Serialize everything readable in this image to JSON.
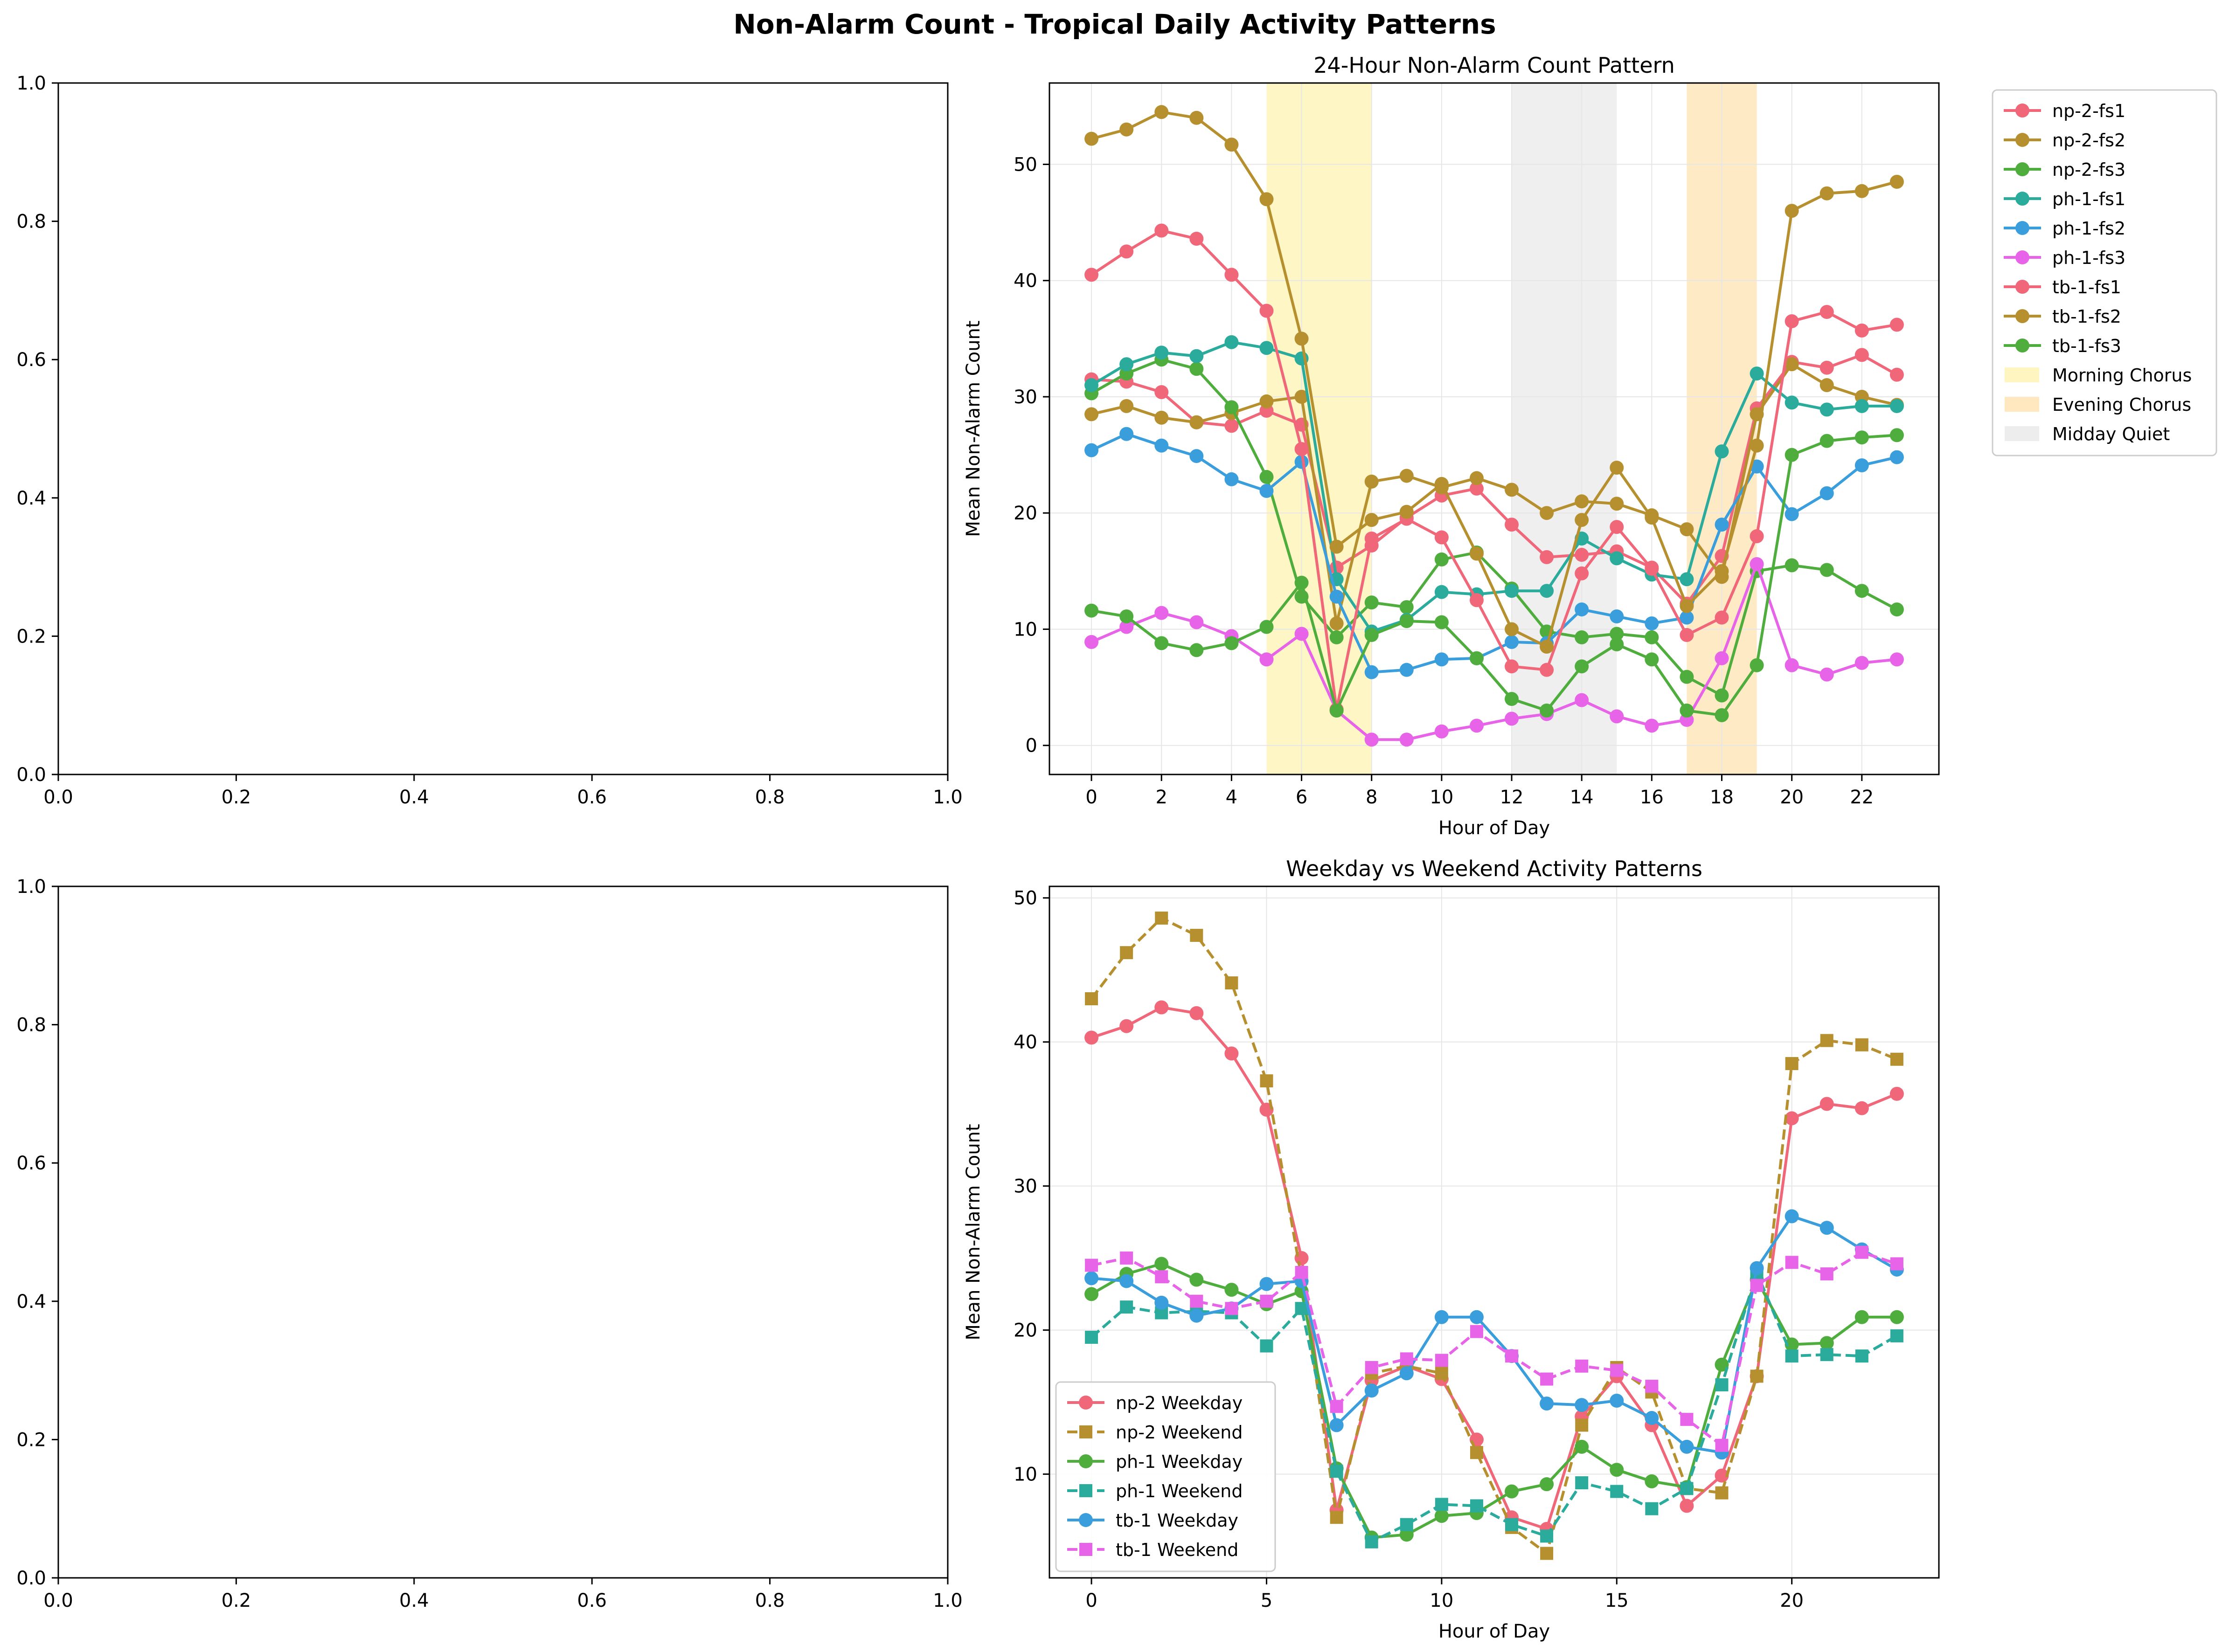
{
  "figure_title": "Non-Alarm Count - Tropical Daily Activity Patterns",
  "chart_data": [
    {
      "panel": "top-left",
      "type": "line",
      "title": "",
      "xlabel": "",
      "ylabel": "",
      "xlim": [
        0,
        1
      ],
      "ylim": [
        0,
        1
      ],
      "xticks": [
        "0.0",
        "0.2",
        "0.4",
        "0.6",
        "0.8",
        "1.0"
      ],
      "yticks": [
        "0.0",
        "0.2",
        "0.4",
        "0.6",
        "0.8",
        "1.0"
      ],
      "series": []
    },
    {
      "panel": "top-right",
      "type": "line",
      "title": "24-Hour Non-Alarm Count Pattern",
      "xlabel": "Hour of Day",
      "ylabel": "Mean Non-Alarm Count",
      "xlim": [
        -1.2,
        24.2
      ],
      "ylim": [
        -2.5,
        57
      ],
      "xticks": [
        0,
        2,
        4,
        6,
        8,
        10,
        12,
        14,
        16,
        18,
        20,
        22
      ],
      "yticks": [
        0,
        10,
        20,
        30,
        40,
        50
      ],
      "grid": true,
      "legend": "outside-right",
      "bands": [
        {
          "label": "Morning Chorus",
          "start": 5,
          "end": 8,
          "color": "#fff5c0"
        },
        {
          "label": "Evening Chorus",
          "start": 17,
          "end": 19,
          "color": "#ffe8c0"
        },
        {
          "label": "Midday Quiet",
          "start": 12,
          "end": 15,
          "color": "#ededed"
        }
      ],
      "series": [
        {
          "name": "np-2-fs1",
          "color": "#f0677a",
          "marker": "circle",
          "dash": "solid",
          "values": [
            31.5,
            31.3,
            30.4,
            27.8,
            27.5,
            28.8,
            27.6,
            15.3,
            17.2,
            19.6,
            21.5,
            22.1,
            19.0,
            16.2,
            16.4,
            16.7,
            15.3,
            12.2,
            16.3,
            29.0,
            33.0,
            32.5,
            33.6,
            31.9
          ]
        },
        {
          "name": "np-2-fs2",
          "color": "#b6902f",
          "marker": "circle",
          "dash": "solid",
          "values": [
            28.5,
            29.2,
            28.2,
            27.8,
            28.6,
            29.6,
            30.0,
            10.5,
            22.7,
            23.2,
            22.2,
            23.0,
            22.0,
            20.0,
            21.0,
            20.8,
            19.8,
            18.6,
            14.5,
            28.5,
            32.8,
            31.0,
            30.0,
            29.3
          ]
        },
        {
          "name": "np-2-fs3",
          "color": "#4ead3c",
          "marker": "circle",
          "dash": "solid",
          "values": [
            30.3,
            32.0,
            33.2,
            32.4,
            29.1,
            23.1,
            12.8,
            9.3,
            12.3,
            11.9,
            16.0,
            16.6,
            13.5,
            9.8,
            9.3,
            9.6,
            9.3,
            5.9,
            4.3,
            15.0,
            15.5,
            15.1,
            13.3,
            11.7
          ]
        },
        {
          "name": "ph-1-fs1",
          "color": "#2aab9c",
          "marker": "circle",
          "dash": "solid",
          "values": [
            31.0,
            32.8,
            33.8,
            33.5,
            34.7,
            34.2,
            33.3,
            14.3,
            9.8,
            10.8,
            13.2,
            13.0,
            13.3,
            13.3,
            17.8,
            16.1,
            14.7,
            14.3,
            25.3,
            32.0,
            29.5,
            28.9,
            29.2,
            29.2
          ]
        },
        {
          "name": "ph-1-fs2",
          "color": "#3a9edd",
          "marker": "circle",
          "dash": "solid",
          "values": [
            25.4,
            26.8,
            25.8,
            24.9,
            22.9,
            21.9,
            24.4,
            12.8,
            6.3,
            6.5,
            7.4,
            7.5,
            8.9,
            8.8,
            11.7,
            11.1,
            10.5,
            11.0,
            19.0,
            24.0,
            19.9,
            21.7,
            24.1,
            24.8
          ]
        },
        {
          "name": "ph-1-fs3",
          "color": "#e764e8",
          "marker": "circle",
          "dash": "solid",
          "values": [
            8.9,
            10.2,
            11.4,
            10.6,
            9.4,
            7.4,
            9.6,
            3.0,
            0.5,
            0.5,
            1.2,
            1.7,
            2.3,
            2.7,
            3.9,
            2.5,
            1.7,
            2.2,
            7.5,
            15.6,
            6.9,
            6.1,
            7.1,
            7.4
          ]
        },
        {
          "name": "tb-1-fs1",
          "color": "#f0677a",
          "marker": "circle",
          "dash": "solid",
          "values": [
            40.5,
            42.5,
            44.3,
            43.6,
            40.5,
            37.4,
            25.5,
            3.1,
            17.8,
            19.5,
            17.9,
            12.5,
            6.8,
            6.5,
            14.8,
            18.8,
            15.2,
            9.5,
            11.0,
            18.0,
            36.5,
            37.3,
            35.7,
            36.2
          ]
        },
        {
          "name": "tb-1-fs2",
          "color": "#b6902f",
          "marker": "circle",
          "dash": "solid",
          "values": [
            52.2,
            53.0,
            54.5,
            54.0,
            51.7,
            47.0,
            35.0,
            17.1,
            19.4,
            20.1,
            22.5,
            16.5,
            10.0,
            8.5,
            19.4,
            23.9,
            19.6,
            12.0,
            15.0,
            25.8,
            46.0,
            47.5,
            47.7,
            48.5
          ]
        },
        {
          "name": "tb-1-fs3",
          "color": "#4ead3c",
          "marker": "circle",
          "dash": "solid",
          "values": [
            11.6,
            11.1,
            8.8,
            8.2,
            8.8,
            10.2,
            14.0,
            3.0,
            9.5,
            10.7,
            10.6,
            7.5,
            4.0,
            3.0,
            6.8,
            8.7,
            7.4,
            3.0,
            2.6,
            6.9,
            25.0,
            26.2,
            26.5,
            26.7
          ]
        }
      ]
    },
    {
      "panel": "bottom-left",
      "type": "line",
      "title": "",
      "xlabel": "",
      "ylabel": "",
      "xlim": [
        0,
        1
      ],
      "ylim": [
        0,
        1
      ],
      "xticks": [
        "0.0",
        "0.2",
        "0.4",
        "0.6",
        "0.8",
        "1.0"
      ],
      "yticks": [
        "0.0",
        "0.2",
        "0.4",
        "0.6",
        "0.8",
        "1.0"
      ],
      "series": []
    },
    {
      "panel": "bottom-right",
      "type": "line",
      "title": "Weekday vs Weekend Activity Patterns",
      "xlabel": "Hour of Day",
      "ylabel": "Mean Non-Alarm Count",
      "xlim": [
        -1.2,
        24.2
      ],
      "ylim": [
        2.8,
        50.8
      ],
      "xticks": [
        0,
        5,
        10,
        15,
        20
      ],
      "yticks": [
        10,
        20,
        30,
        40,
        50
      ],
      "grid": true,
      "legend": "lower-left",
      "bands": [],
      "series": [
        {
          "name": "np-2 Weekday",
          "color": "#f0677a",
          "marker": "circle",
          "dash": "solid",
          "values": [
            40.3,
            41.1,
            42.4,
            42.0,
            39.2,
            35.3,
            25.0,
            7.5,
            16.5,
            17.5,
            16.6,
            12.4,
            7.0,
            6.2,
            14.0,
            16.8,
            13.4,
            7.8,
            9.9,
            16.8,
            34.7,
            35.7,
            35.4,
            36.4
          ]
        },
        {
          "name": "np-2 Weekend",
          "color": "#b6902f",
          "marker": "square",
          "dash": "dashed",
          "values": [
            43.0,
            46.2,
            48.6,
            47.4,
            44.1,
            37.3,
            23.6,
            7.0,
            17.0,
            17.5,
            17.0,
            11.5,
            6.3,
            4.5,
            13.4,
            17.4,
            15.7,
            9.0,
            8.7,
            16.8,
            38.5,
            40.1,
            39.8,
            38.8
          ]
        },
        {
          "name": "ph-1 Weekday",
          "color": "#4ead3c",
          "marker": "circle",
          "dash": "solid",
          "values": [
            22.5,
            23.9,
            24.6,
            23.5,
            22.8,
            21.8,
            22.7,
            10.4,
            5.6,
            5.8,
            7.1,
            7.3,
            8.8,
            9.3,
            11.9,
            10.3,
            9.5,
            9.1,
            17.6,
            23.5,
            19.0,
            19.1,
            20.9,
            20.9
          ]
        },
        {
          "name": "ph-1 Weekend",
          "color": "#2aab9c",
          "marker": "square",
          "dash": "dashed",
          "values": [
            19.5,
            21.6,
            21.2,
            21.3,
            21.2,
            18.9,
            21.5,
            10.2,
            5.3,
            6.5,
            7.9,
            7.8,
            6.5,
            5.7,
            9.4,
            8.8,
            7.6,
            9.0,
            16.2,
            24.0,
            18.2,
            18.3,
            18.2,
            19.6
          ]
        },
        {
          "name": "tb-1 Weekday",
          "color": "#3a9edd",
          "marker": "circle",
          "dash": "solid",
          "values": [
            23.6,
            23.4,
            21.9,
            21.0,
            21.5,
            23.2,
            23.4,
            13.4,
            15.8,
            17.0,
            20.9,
            20.9,
            18.2,
            14.9,
            14.8,
            15.1,
            13.9,
            11.9,
            11.5,
            24.3,
            27.9,
            27.1,
            25.6,
            24.2
          ]
        },
        {
          "name": "tb-1 Weekend",
          "color": "#e764e8",
          "marker": "square",
          "dash": "dashed",
          "values": [
            24.5,
            25.0,
            23.7,
            22.0,
            21.5,
            22.0,
            24.0,
            14.7,
            17.4,
            18.0,
            17.9,
            19.9,
            18.2,
            16.6,
            17.5,
            17.2,
            16.1,
            13.8,
            12.0,
            23.1,
            24.7,
            23.9,
            25.4,
            24.6
          ]
        }
      ]
    }
  ]
}
